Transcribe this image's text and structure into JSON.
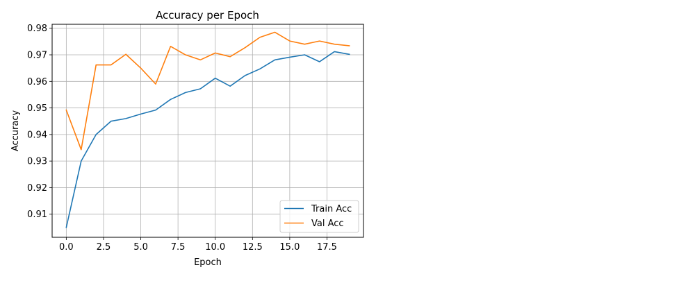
{
  "chart_data": {
    "type": "line",
    "title": "Accuracy per Epoch",
    "xlabel": "Epoch",
    "ylabel": "Accuracy",
    "xlim": [
      -0.95,
      19.95
    ],
    "ylim": [
      0.9013,
      0.9815
    ],
    "grid": true,
    "legend_position": "lower-right",
    "x_ticks": [
      0.0,
      2.5,
      5.0,
      7.5,
      10.0,
      12.5,
      15.0,
      17.5
    ],
    "x_tick_labels": [
      "0.0",
      "2.5",
      "5.0",
      "7.5",
      "10.0",
      "12.5",
      "15.0",
      "17.5"
    ],
    "y_ticks": [
      0.91,
      0.92,
      0.93,
      0.94,
      0.95,
      0.96,
      0.97,
      0.98
    ],
    "y_tick_labels": [
      "0.91",
      "0.92",
      "0.93",
      "0.94",
      "0.95",
      "0.96",
      "0.97",
      "0.98"
    ],
    "x": [
      0,
      1,
      2,
      3,
      4,
      5,
      6,
      7,
      8,
      9,
      10,
      11,
      12,
      13,
      14,
      15,
      16,
      17,
      18,
      19
    ],
    "series": [
      {
        "name": "Train Acc",
        "color": "#1f77b4",
        "values": [
          0.905,
          0.93,
          0.94,
          0.945,
          0.946,
          0.9477,
          0.9492,
          0.9532,
          0.9558,
          0.9572,
          0.9612,
          0.9582,
          0.9622,
          0.9647,
          0.9681,
          0.9691,
          0.97,
          0.9674,
          0.9712,
          0.9702
        ]
      },
      {
        "name": "Val Acc",
        "color": "#ff7f0e",
        "values": [
          0.9492,
          0.9343,
          0.9662,
          0.9662,
          0.9702,
          0.965,
          0.959,
          0.9732,
          0.97,
          0.9681,
          0.9707,
          0.9693,
          0.9727,
          0.9766,
          0.9785,
          0.9752,
          0.974,
          0.9752,
          0.974,
          0.9734
        ]
      }
    ]
  }
}
